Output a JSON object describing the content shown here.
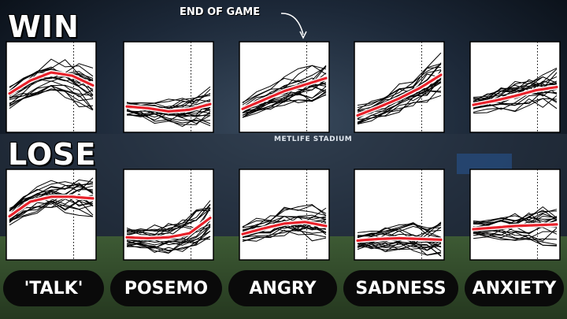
{
  "labels": {
    "win": "WIN",
    "lose": "LOSE",
    "annotation": "END OF GAME",
    "stadium": "METLIFE STADIUM"
  },
  "categories": [
    "'TALK'",
    "POSEMO",
    "ANGRY",
    "SADNESS",
    "ANXIETY"
  ],
  "colors": {
    "mean_line": "#e8222b",
    "trace": "#000000",
    "panel_bg": "#ffffff",
    "pill_bg": "#0a0a0a"
  },
  "chart_data": [
    {
      "type": "line",
      "row": "WIN",
      "category": "'TALK'",
      "end_of_game_x": 0.75,
      "x": [
        0,
        0.25,
        0.5,
        0.75,
        1
      ],
      "mean": [
        0.42,
        0.58,
        0.68,
        0.64,
        0.52
      ]
    },
    {
      "type": "line",
      "row": "WIN",
      "category": "POSEMO",
      "end_of_game_x": 0.75,
      "x": [
        0,
        0.25,
        0.5,
        0.75,
        1
      ],
      "mean": [
        0.26,
        0.24,
        0.2,
        0.22,
        0.29
      ]
    },
    {
      "type": "line",
      "row": "WIN",
      "category": "ANGRY",
      "end_of_game_x": 0.75,
      "x": [
        0,
        0.25,
        0.5,
        0.75,
        1
      ],
      "mean": [
        0.23,
        0.34,
        0.45,
        0.53,
        0.61
      ]
    },
    {
      "type": "line",
      "row": "WIN",
      "category": "SADNESS",
      "end_of_game_x": 0.75,
      "x": [
        0,
        0.25,
        0.5,
        0.75,
        1
      ],
      "mean": [
        0.15,
        0.25,
        0.36,
        0.49,
        0.65
      ]
    },
    {
      "type": "line",
      "row": "WIN",
      "category": "ANXIETY",
      "end_of_game_x": 0.75,
      "x": [
        0,
        0.25,
        0.5,
        0.75,
        1
      ],
      "mean": [
        0.28,
        0.33,
        0.39,
        0.46,
        0.5
      ]
    },
    {
      "type": "line",
      "row": "LOSE",
      "category": "'TALK'",
      "end_of_game_x": 0.75,
      "x": [
        0,
        0.25,
        0.5,
        0.75,
        1
      ],
      "mean": [
        0.48,
        0.66,
        0.72,
        0.72,
        0.7
      ]
    },
    {
      "type": "line",
      "row": "LOSE",
      "category": "POSEMO",
      "end_of_game_x": 0.75,
      "x": [
        0,
        0.25,
        0.5,
        0.75,
        1
      ],
      "mean": [
        0.22,
        0.21,
        0.22,
        0.27,
        0.46
      ]
    },
    {
      "type": "line",
      "row": "LOSE",
      "category": "ANGRY",
      "end_of_game_x": 0.75,
      "x": [
        0,
        0.25,
        0.5,
        0.75,
        1
      ],
      "mean": [
        0.26,
        0.33,
        0.39,
        0.41,
        0.36
      ]
    },
    {
      "type": "line",
      "row": "LOSE",
      "category": "SADNESS",
      "end_of_game_x": 0.75,
      "x": [
        0,
        0.25,
        0.5,
        0.75,
        1
      ],
      "mean": [
        0.18,
        0.2,
        0.21,
        0.2,
        0.19
      ]
    },
    {
      "type": "line",
      "row": "LOSE",
      "category": "ANXIETY",
      "end_of_game_x": 0.75,
      "x": [
        0,
        0.25,
        0.5,
        0.75,
        1
      ],
      "mean": [
        0.32,
        0.34,
        0.36,
        0.37,
        0.38
      ]
    }
  ]
}
